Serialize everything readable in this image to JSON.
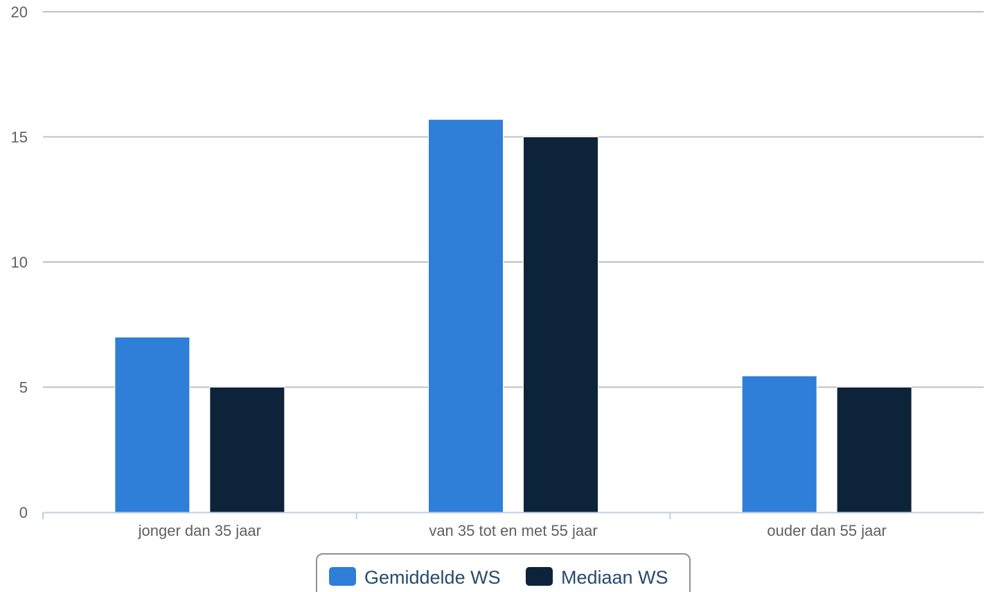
{
  "chart_data": {
    "type": "bar",
    "title": "",
    "xlabel": "",
    "ylabel": "",
    "ylim": [
      0,
      20
    ],
    "yticks": [
      0,
      5,
      10,
      15,
      20
    ],
    "grid": true,
    "legend_position": "bottom-center",
    "categories": [
      "jonger dan 35 jaar",
      "van 35 tot en met 55 jaar",
      "ouder dan 55 jaar"
    ],
    "series": [
      {
        "name": "Gemiddelde WS",
        "color": "#2f7ed8",
        "values": [
          7.0,
          15.7,
          5.45
        ]
      },
      {
        "name": "Mediaan WS",
        "color": "#0d233a",
        "values": [
          5.0,
          15.0,
          5.0
        ]
      }
    ]
  }
}
